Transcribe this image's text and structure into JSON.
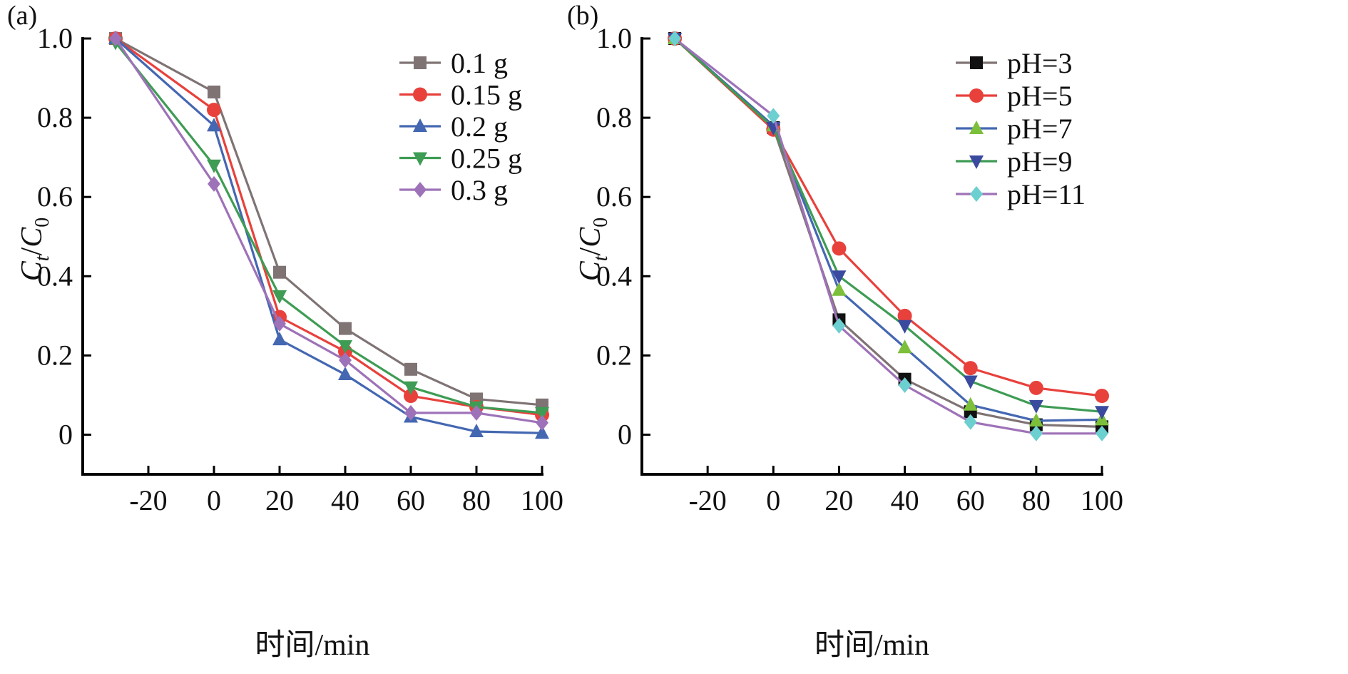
{
  "chart_data": [
    {
      "type": "line",
      "panel_label": "(a)",
      "xlabel": "时间/min",
      "ylabel": "Ct/C0",
      "ylabel_parts": {
        "main1": "C",
        "sub1": "t",
        "slash": "/",
        "main2": "C",
        "sub2": "0"
      },
      "x": [
        -30,
        0,
        20,
        40,
        60,
        80,
        100
      ],
      "xticks": [
        -20,
        0,
        20,
        40,
        60,
        80,
        100
      ],
      "xtick_labels": [
        "-20",
        "0",
        "20",
        "40",
        "60",
        "80",
        "100"
      ],
      "xlim": [
        -40,
        100
      ],
      "yticks": [
        0,
        0.2,
        0.4,
        0.6,
        0.8,
        1.0
      ],
      "ytick_labels": [
        "0",
        "0.2",
        "0.4",
        "0.6",
        "0.8",
        "1.0"
      ],
      "ylim": [
        -0.1,
        1.0
      ],
      "grid": false,
      "legend_position": "top-right",
      "series": [
        {
          "name": "0.1 g",
          "color": "#7f7374",
          "marker": "square",
          "values": [
            1.0,
            0.865,
            0.41,
            0.268,
            0.165,
            0.09,
            0.075
          ]
        },
        {
          "name": "0.15 g",
          "color": "#e8413c",
          "marker": "circle",
          "values": [
            1.0,
            0.82,
            0.297,
            0.21,
            0.098,
            0.07,
            0.05
          ]
        },
        {
          "name": "0.2 g",
          "color": "#4467b2",
          "marker": "triangle-up",
          "values": [
            1.0,
            0.78,
            0.24,
            0.152,
            0.045,
            0.008,
            0.004
          ]
        },
        {
          "name": "0.25 g",
          "color": "#3e9c54",
          "marker": "triangle-down",
          "values": [
            0.99,
            0.68,
            0.35,
            0.224,
            0.12,
            0.07,
            0.055
          ]
        },
        {
          "name": "0.3 g",
          "color": "#9e72b8",
          "marker": "diamond",
          "values": [
            1.0,
            0.633,
            0.28,
            0.188,
            0.055,
            0.055,
            0.03
          ]
        }
      ]
    },
    {
      "type": "line",
      "panel_label": "(b)",
      "xlabel": "时间/min",
      "ylabel": "Ct/C0",
      "ylabel_parts": {
        "main1": "C",
        "sub1": "t",
        "slash": "/",
        "main2": "C",
        "sub2": "0"
      },
      "x": [
        -30,
        0,
        20,
        40,
        60,
        80,
        100
      ],
      "xticks": [
        -20,
        0,
        20,
        40,
        60,
        80,
        100
      ],
      "xtick_labels": [
        "-20",
        "0",
        "20",
        "40",
        "60",
        "80",
        "100"
      ],
      "xlim": [
        -40,
        100
      ],
      "yticks": [
        0,
        0.2,
        0.4,
        0.6,
        0.8,
        1.0
      ],
      "ytick_labels": [
        "0",
        "0.2",
        "0.4",
        "0.6",
        "0.8",
        "1.0"
      ],
      "ylim": [
        -0.1,
        1.0
      ],
      "grid": false,
      "legend_position": "top-right",
      "series": [
        {
          "name": "pH=3",
          "color": "#111111",
          "line_color": "#7f7374",
          "marker": "square",
          "values": [
            1.0,
            0.775,
            0.29,
            0.14,
            0.058,
            0.025,
            0.02
          ]
        },
        {
          "name": "pH=5",
          "color": "#e8413c",
          "line_color": "#e8413c",
          "marker": "circle",
          "values": [
            1.0,
            0.77,
            0.47,
            0.3,
            0.168,
            0.118,
            0.098
          ]
        },
        {
          "name": "pH=7",
          "color": "#7cbf3a",
          "line_color": "#4467b2",
          "marker": "triangle-up",
          "values": [
            1.0,
            0.78,
            0.365,
            0.22,
            0.075,
            0.035,
            0.038
          ]
        },
        {
          "name": "pH=9",
          "color": "#3a4a9e",
          "line_color": "#3e9c54",
          "marker": "triangle-down",
          "values": [
            1.0,
            0.775,
            0.4,
            0.275,
            0.135,
            0.073,
            0.058
          ]
        },
        {
          "name": "pH=11",
          "color": "#6ccfd0",
          "line_color": "#9e72b8",
          "marker": "diamond",
          "values": [
            1.0,
            0.805,
            0.275,
            0.125,
            0.032,
            0.003,
            0.003
          ]
        }
      ]
    }
  ]
}
